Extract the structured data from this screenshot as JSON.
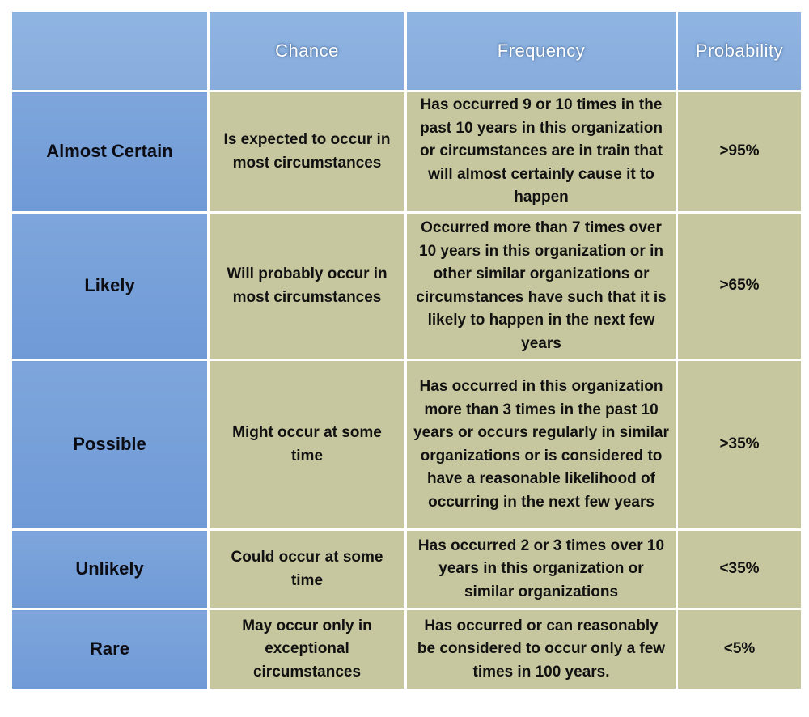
{
  "header": {
    "corner": "",
    "chance": "Chance",
    "frequency": "Frequency",
    "probability": "Probability"
  },
  "rows": [
    {
      "label": "Almost Certain",
      "chance": "Is expected to occur in most circumstances",
      "frequency": "Has occurred 9 or 10 times in the past 10 years in this organization or circumstances are in train that will almost certainly cause it to happen",
      "probability": ">95%"
    },
    {
      "label": "Likely",
      "chance": "Will probably occur in most circumstances",
      "frequency": "Occurred more than 7 times over 10 years in this organization or in other similar organizations or circumstances have such that it is likely to happen in the next few years",
      "probability": ">65%"
    },
    {
      "label": "Possible",
      "chance": "Might occur at some time",
      "frequency": "Has occurred in this organization more than 3 times in the past 10 years or occurs regularly in similar organizations or is considered to have a reasonable likelihood of occurring in the next few years",
      "probability": ">35%"
    },
    {
      "label": "Unlikely",
      "chance": "Could occur at some time",
      "frequency": "Has occurred 2 or 3 times over 10 years in this organization or similar organizations",
      "probability": "<35%"
    },
    {
      "label": "Rare",
      "chance": "May occur only in exceptional circumstances",
      "frequency": "Has occurred or can reasonably be considered to occur only a few times in 100 years.",
      "probability": "<5%"
    }
  ],
  "colors": {
    "header_blue": "#8fb5e3",
    "rowhead_blue": "#7ea6dc",
    "cell_khaki": "#c7c79f"
  }
}
